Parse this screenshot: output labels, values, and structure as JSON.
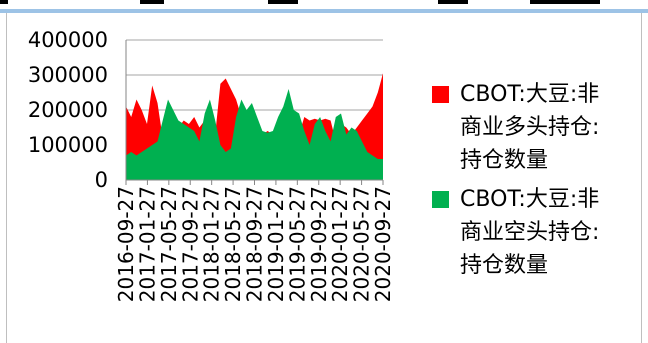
{
  "chart_data": {
    "type": "area",
    "title": "",
    "xlabel": "",
    "ylabel": "",
    "ylim": [
      0,
      400000
    ],
    "y_ticks": [
      0,
      100000,
      200000,
      300000,
      400000
    ],
    "y_tick_labels": [
      "0",
      "100000",
      "200000",
      "300000",
      "400000"
    ],
    "grid": "horizontal",
    "legend_position": "right",
    "x_tick_labels": [
      "2016-09-27",
      "2017-01-27",
      "2017-05-27",
      "2017-09-27",
      "2018-01-27",
      "2018-05-27",
      "2018-09-27",
      "2019-01-27",
      "2019-05-27",
      "2019-09-27",
      "2020-01-27",
      "2020-05-27",
      "2020-09-27"
    ],
    "x": [
      "2016-09",
      "2016-10",
      "2016-11",
      "2016-12",
      "2017-01",
      "2017-02",
      "2017-03",
      "2017-04",
      "2017-05",
      "2017-06",
      "2017-07",
      "2017-08",
      "2017-09",
      "2017-10",
      "2017-11",
      "2017-12",
      "2018-01",
      "2018-02",
      "2018-03",
      "2018-04",
      "2018-05",
      "2018-06",
      "2018-07",
      "2018-08",
      "2018-09",
      "2018-10",
      "2018-11",
      "2018-12",
      "2019-01",
      "2019-02",
      "2019-03",
      "2019-04",
      "2019-05",
      "2019-06",
      "2019-07",
      "2019-08",
      "2019-09",
      "2019-10",
      "2019-11",
      "2019-12",
      "2020-01",
      "2020-02",
      "2020-03",
      "2020-04",
      "2020-05",
      "2020-06",
      "2020-07",
      "2020-08",
      "2020-09",
      "2020-10"
    ],
    "series": [
      {
        "name": "CBOT:大豆:非商业多头持仓:持仓数量",
        "color": "#ff0000",
        "values": [
          210000,
          180000,
          230000,
          200000,
          160000,
          270000,
          220000,
          120000,
          100000,
          100000,
          150000,
          170000,
          160000,
          180000,
          150000,
          170000,
          150000,
          130000,
          275000,
          290000,
          260000,
          230000,
          180000,
          170000,
          150000,
          140000,
          130000,
          140000,
          130000,
          140000,
          160000,
          150000,
          150000,
          130000,
          180000,
          170000,
          175000,
          170000,
          175000,
          170000,
          110000,
          160000,
          150000,
          130000,
          150000,
          170000,
          190000,
          210000,
          250000,
          305000
        ]
      },
      {
        "name": "CBOT:大豆:非商业空头持仓:持仓数量",
        "color": "#00b050",
        "values": [
          70000,
          80000,
          70000,
          80000,
          90000,
          100000,
          110000,
          170000,
          230000,
          200000,
          170000,
          160000,
          150000,
          140000,
          110000,
          190000,
          230000,
          170000,
          100000,
          80000,
          90000,
          180000,
          230000,
          200000,
          220000,
          180000,
          140000,
          135000,
          140000,
          180000,
          210000,
          260000,
          200000,
          190000,
          140000,
          100000,
          160000,
          180000,
          140000,
          110000,
          180000,
          190000,
          130000,
          150000,
          140000,
          110000,
          80000,
          70000,
          60000,
          60000
        ]
      }
    ]
  }
}
